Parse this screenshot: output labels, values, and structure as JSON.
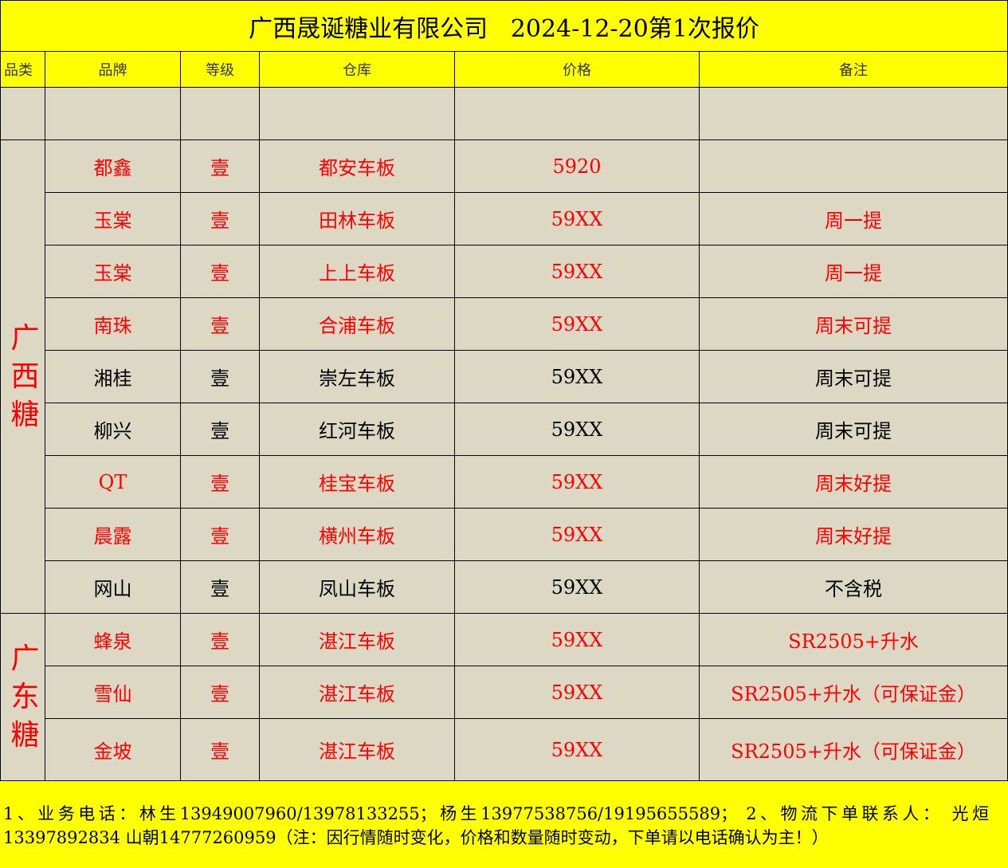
{
  "title": "广西晟诞糖业有限公司   2024-12-20第1次报价",
  "headers": [
    "品类",
    "品牌",
    "等级",
    "仓库",
    "价格",
    "备注"
  ],
  "colors": {
    "header_bg": "#ffff00",
    "cell_bg": "#ddd8c4",
    "red_text": "#ff0000"
  },
  "categories": [
    {
      "label": "广西糖",
      "color": "red"
    },
    {
      "label": "广东糖",
      "color": "red"
    }
  ],
  "rows": [
    {
      "brand": "都鑫",
      "grade": "壹",
      "warehouse": "都安车板",
      "price": "5920",
      "note": "",
      "color": "red"
    },
    {
      "brand": "玉棠",
      "grade": "壹",
      "warehouse": "田林车板",
      "price": "59XX",
      "note": "周一提",
      "color": "red"
    },
    {
      "brand": "玉棠",
      "grade": "壹",
      "warehouse": "上上车板",
      "price": "59XX",
      "note": "周一提",
      "color": "red"
    },
    {
      "brand": "南珠",
      "grade": "壹",
      "warehouse": "合浦车板",
      "price": "59XX",
      "note": "周末可提",
      "color": "red"
    },
    {
      "brand": "湘桂",
      "grade": "壹",
      "warehouse": "崇左车板",
      "price": "59XX",
      "note": "周末可提",
      "color": "black"
    },
    {
      "brand": "柳兴",
      "grade": "壹",
      "warehouse": "红河车板",
      "price": "59XX",
      "note": "周末可提",
      "color": "black"
    },
    {
      "brand": "QT",
      "grade": "壹",
      "warehouse": "桂宝车板",
      "price": "59XX",
      "note": "周末好提",
      "color": "red"
    },
    {
      "brand": "晨露",
      "grade": "壹",
      "warehouse": "横州车板",
      "price": "59XX",
      "note": "周末好提",
      "color": "red"
    },
    {
      "brand": "网山",
      "grade": "壹",
      "warehouse": "凤山车板",
      "price": "59XX",
      "note": "不含税",
      "color": "black"
    },
    {
      "brand": "蜂泉",
      "grade": "壹",
      "warehouse": "湛江车板",
      "price": "59XX",
      "note": "SR2505+升水",
      "color": "red"
    },
    {
      "brand": "雪仙",
      "grade": "壹",
      "warehouse": "湛江车板",
      "price": "59XX",
      "note": "SR2505+升水（可保证金）",
      "color": "red"
    },
    {
      "brand": "金坡",
      "grade": "壹",
      "warehouse": "湛江车板",
      "price": "59XX",
      "note": "SR2505+升水（可保证金）",
      "color": "red"
    }
  ],
  "footer": "1、业务电话：林生13949007960/13978133255；杨生13977538756/19195655589；    2、物流下单联系人：             光烜13397892834     山朝14777260959（注：因行情随时变化，价格和数量随时变动，下单请以电话确认为主！）"
}
